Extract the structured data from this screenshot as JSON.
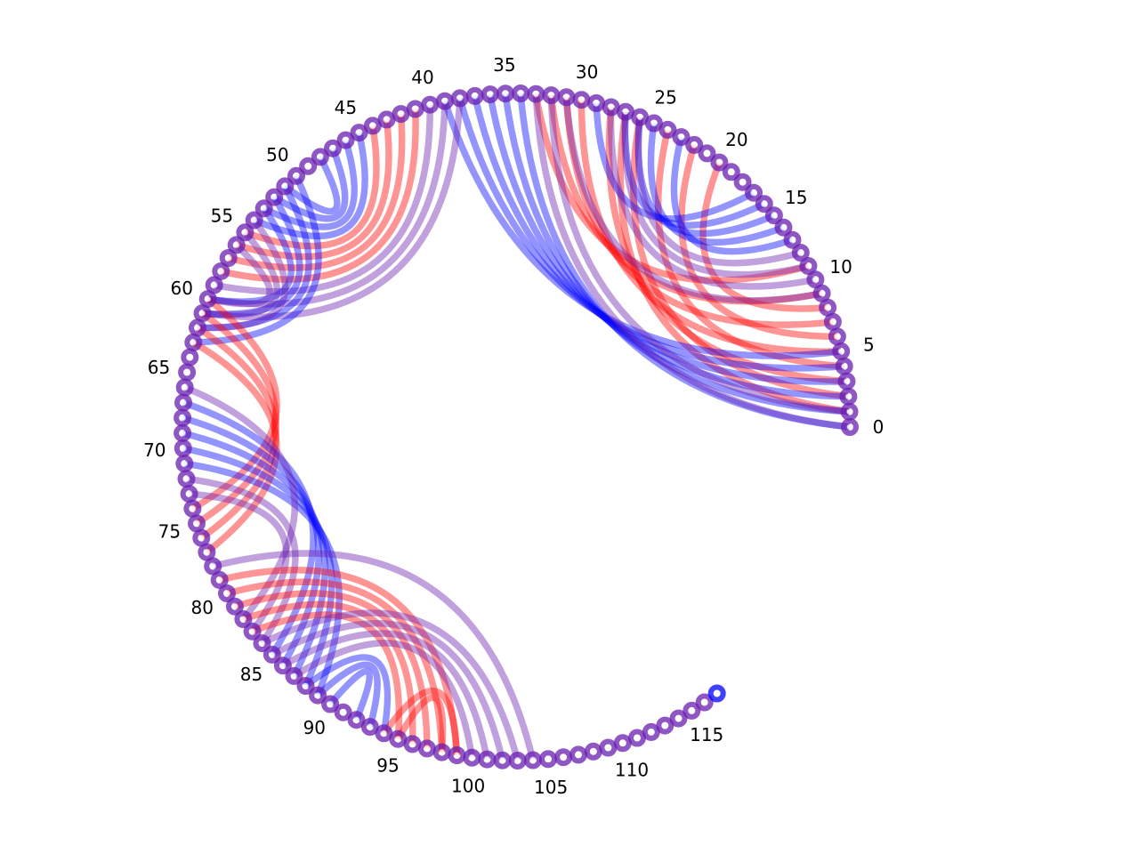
{
  "diagram": {
    "node_count": 118,
    "tick_labels": [
      "0",
      "5",
      "10",
      "15",
      "20",
      "25",
      "30",
      "35",
      "40",
      "45",
      "50",
      "55",
      "60",
      "65",
      "70",
      "75",
      "80",
      "85",
      "90",
      "95",
      "100",
      "105",
      "110",
      "115"
    ],
    "colors": {
      "red": "#ff0000",
      "blue": "#0000ff",
      "purple": "#6a1fb0",
      "node_core_light": "#ffffff"
    },
    "node_colors": {
      "default": "purple",
      "overrides": {
        "117": "blue"
      }
    },
    "groups": [
      {
        "color": "red",
        "pairs": [
          [
            1,
            27
          ],
          [
            3,
            28
          ],
          [
            5,
            30
          ],
          [
            7,
            31
          ],
          [
            9,
            32
          ],
          [
            11,
            33
          ],
          [
            2,
            26
          ],
          [
            4,
            24
          ],
          [
            6,
            22
          ],
          [
            8,
            20
          ]
        ]
      },
      {
        "color": "blue",
        "pairs": [
          [
            0,
            34
          ],
          [
            1,
            35
          ],
          [
            2,
            36
          ],
          [
            3,
            37
          ],
          [
            4,
            38
          ],
          [
            5,
            39
          ],
          [
            14,
            25
          ],
          [
            15,
            26
          ],
          [
            16,
            27
          ],
          [
            17,
            29
          ],
          [
            13,
            23
          ]
        ]
      },
      {
        "color": "purple",
        "pairs": [
          [
            0,
            33
          ],
          [
            1,
            32
          ],
          [
            10,
            28
          ],
          [
            11,
            27
          ],
          [
            12,
            26
          ],
          [
            9,
            31
          ]
        ]
      },
      {
        "color": "red",
        "pairs": [
          [
            41,
            58
          ],
          [
            42,
            57
          ],
          [
            43,
            56
          ],
          [
            44,
            55
          ]
        ]
      },
      {
        "color": "blue",
        "pairs": [
          [
            46,
            53
          ],
          [
            47,
            52
          ],
          [
            48,
            51
          ],
          [
            45,
            54
          ]
        ]
      },
      {
        "color": "purple",
        "pairs": [
          [
            40,
            59
          ],
          [
            39,
            60
          ],
          [
            38,
            61
          ]
        ]
      },
      {
        "color": "blue",
        "pairs": [
          [
            50,
            63
          ],
          [
            51,
            62
          ],
          [
            52,
            61
          ],
          [
            53,
            60
          ]
        ]
      },
      {
        "color": "purple",
        "pairs": [
          [
            54,
            62
          ],
          [
            55,
            61
          ],
          [
            56,
            60
          ]
        ]
      },
      {
        "color": "red",
        "pairs": [
          [
            60,
            74
          ],
          [
            61,
            75
          ],
          [
            62,
            76
          ],
          [
            63,
            77
          ]
        ]
      },
      {
        "color": "blue",
        "pairs": [
          [
            67,
            85
          ],
          [
            68,
            86
          ],
          [
            69,
            87
          ],
          [
            70,
            88
          ],
          [
            71,
            89
          ]
        ]
      },
      {
        "color": "purple",
        "pairs": [
          [
            72,
            84
          ],
          [
            73,
            83
          ],
          [
            66,
            82
          ]
        ]
      },
      {
        "color": "red",
        "pairs": [
          [
            79,
            99
          ],
          [
            80,
            98
          ],
          [
            81,
            97
          ],
          [
            82,
            96
          ],
          [
            83,
            95
          ]
        ]
      },
      {
        "color": "purple",
        "pairs": [
          [
            84,
            103
          ],
          [
            85,
            102
          ],
          [
            86,
            101
          ],
          [
            87,
            100
          ],
          [
            78,
            104
          ]
        ]
      },
      {
        "color": "blue",
        "pairs": [
          [
            88,
            94
          ],
          [
            89,
            93
          ],
          [
            90,
            92
          ]
        ]
      },
      {
        "color": "red",
        "pairs": [
          [
            94,
            99
          ],
          [
            95,
            98
          ]
        ]
      }
    ]
  }
}
